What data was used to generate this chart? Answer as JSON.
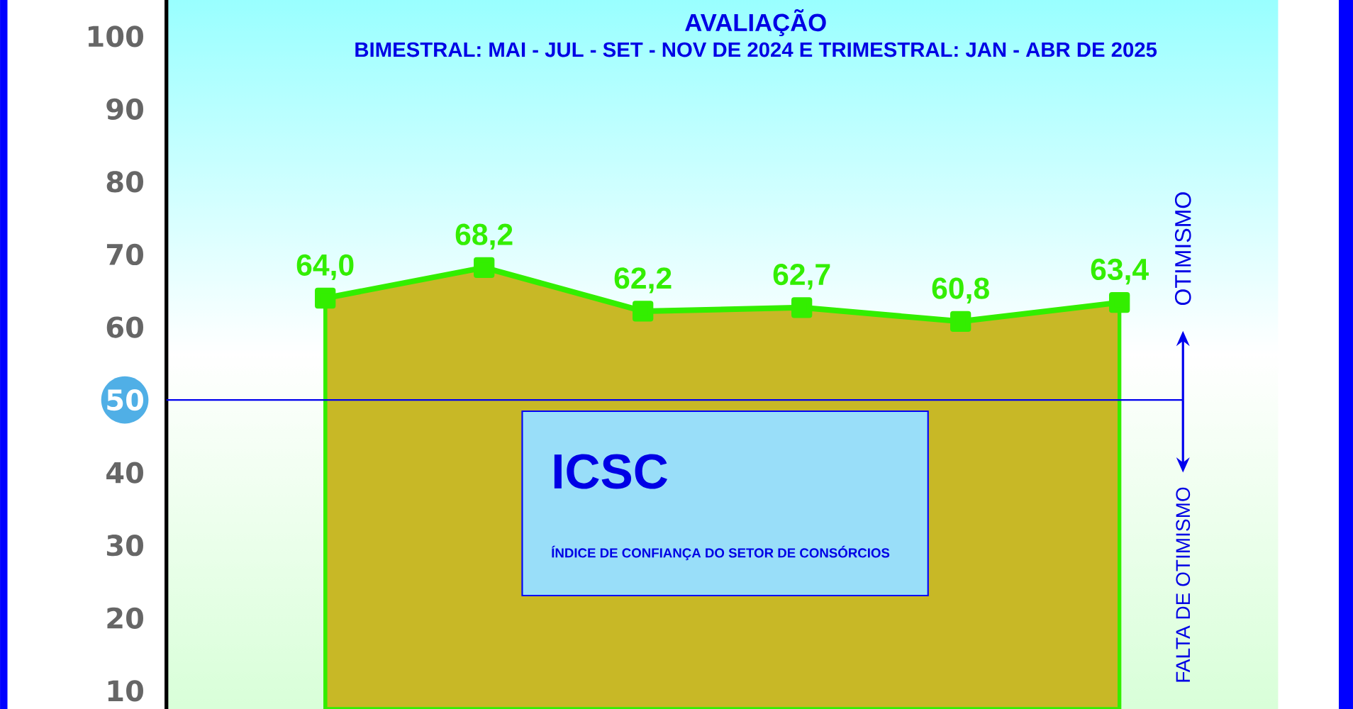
{
  "chart_data": {
    "type": "area",
    "title": "AVALIAÇÃO",
    "subtitle": "BIMESTRAL: MAI - JUL - SET - NOV DE 2024 E TRIMESTRAL: JAN - ABR DE 2025",
    "categories": [
      null,
      null,
      null,
      null,
      null,
      null
    ],
    "series": [
      {
        "color": "#33ee00",
        "values": [
          64.0,
          68.2,
          62.2,
          62.7,
          60.8,
          63.4
        ],
        "value_labels": [
          "64,0",
          "68,2",
          "62,2",
          "62,7",
          "60,8",
          "63,4"
        ]
      }
    ],
    "ylim": [
      7.5,
      105
    ],
    "yticks": [
      10,
      20,
      30,
      40,
      50,
      60,
      70,
      80,
      90,
      100
    ],
    "ref_lines": [
      {
        "axis": "y",
        "value": 50,
        "color": "#0000ee"
      }
    ],
    "annotations": [
      "ICSC",
      "ÍNDICE DE CONFIANÇA DO SETOR DE CONSÓRCIOS",
      "OTIMISMO",
      "FALTA DE OTIMISMO"
    ],
    "marker": "square",
    "line_style": "solid",
    "grid": false
  }
}
